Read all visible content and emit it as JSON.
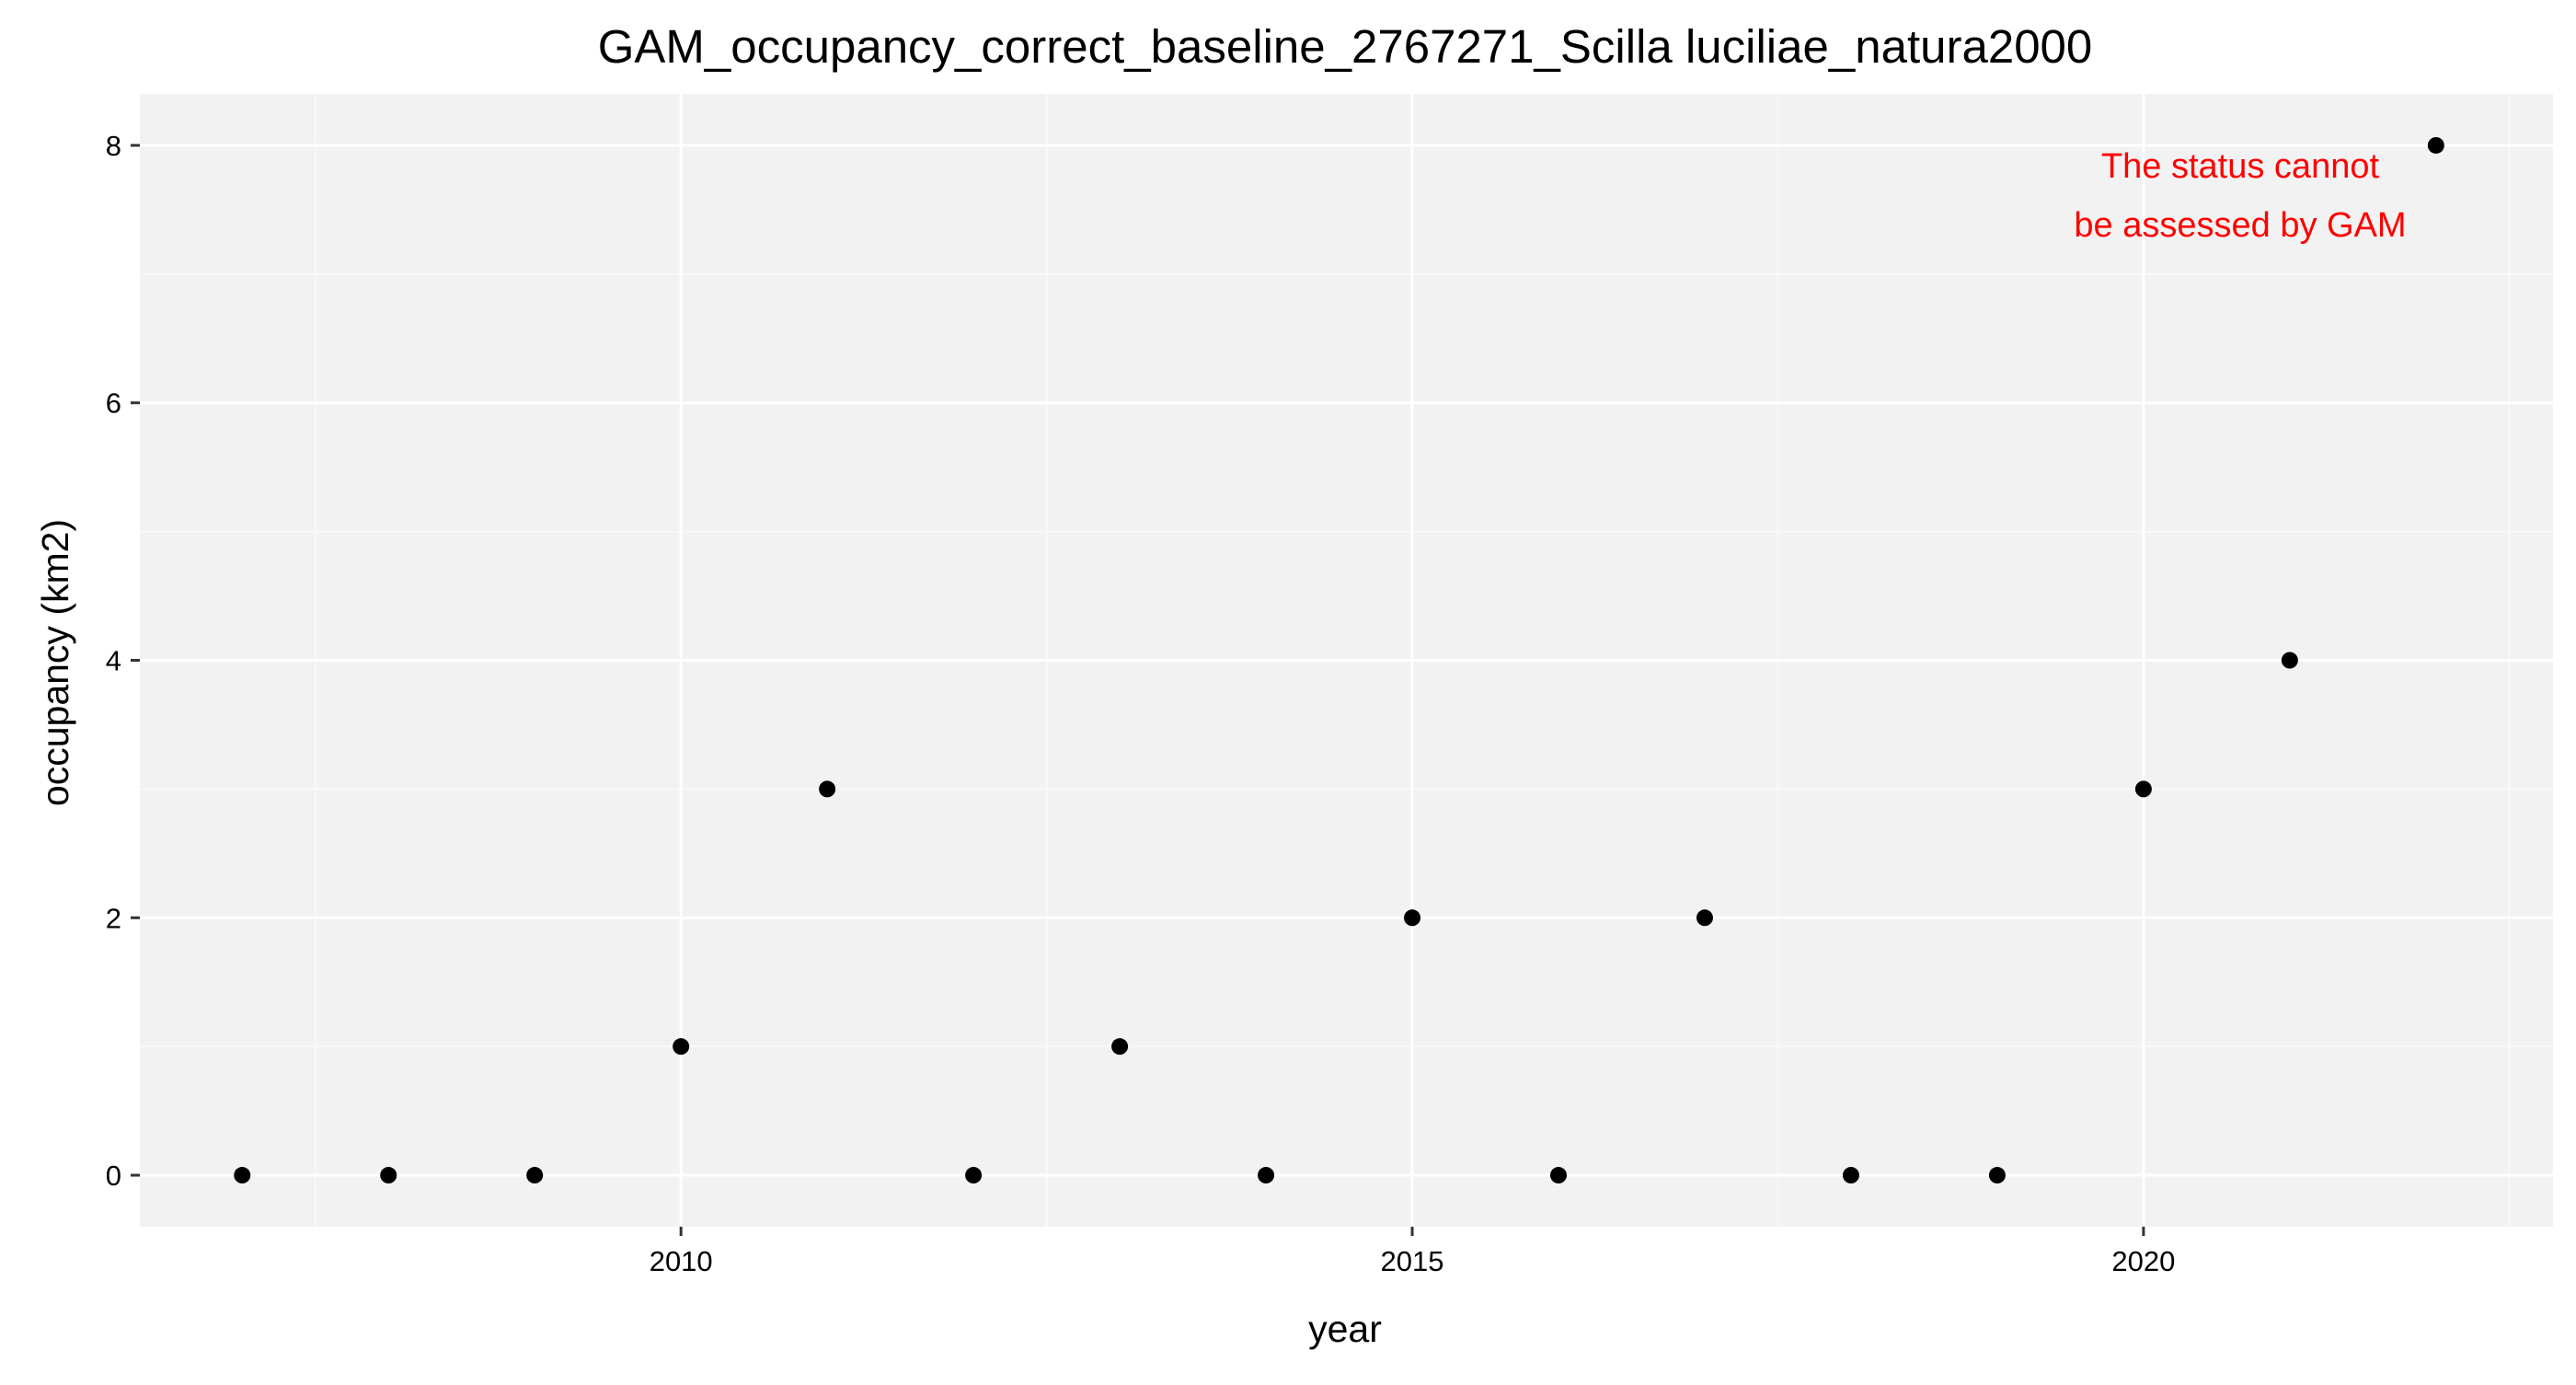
{
  "colors": {
    "panel_background": "#f2f2f2",
    "grid_major": "#ffffff",
    "grid_minor": "#fafafa",
    "point": "#000000",
    "annotation": "#ff0000",
    "tick": "#333333",
    "text": "#000000"
  },
  "chart_data": {
    "type": "scatter",
    "title": "GAM_occupancy_correct_baseline_2767271_Scilla luciliae_natura2000",
    "xlabel": "year",
    "ylabel": "occupancy (km2)",
    "xlim": [
      2006.3,
      2022.8
    ],
    "ylim": [
      -0.4,
      8.4
    ],
    "x_ticks": [
      2010,
      2015,
      2020
    ],
    "x_tick_labels": [
      "2010",
      "2015",
      "2020"
    ],
    "x_minor_ticks": [
      2007.5,
      2012.5,
      2017.5,
      2022.5
    ],
    "y_ticks": [
      0,
      2,
      4,
      6,
      8
    ],
    "y_tick_labels": [
      "0",
      "2",
      "4",
      "6",
      "8"
    ],
    "y_minor_ticks": [
      1,
      3,
      5,
      7
    ],
    "grid": true,
    "legend": "none",
    "points": [
      {
        "x": 2007,
        "y": 0
      },
      {
        "x": 2008,
        "y": 0
      },
      {
        "x": 2009,
        "y": 0
      },
      {
        "x": 2010,
        "y": 1
      },
      {
        "x": 2011,
        "y": 3
      },
      {
        "x": 2012,
        "y": 0
      },
      {
        "x": 2013,
        "y": 1
      },
      {
        "x": 2014,
        "y": 0
      },
      {
        "x": 2015,
        "y": 2
      },
      {
        "x": 2016,
        "y": 0
      },
      {
        "x": 2017,
        "y": 2
      },
      {
        "x": 2018,
        "y": 0
      },
      {
        "x": 2019,
        "y": 0
      },
      {
        "x": 2020,
        "y": 3
      },
      {
        "x": 2021,
        "y": 4
      },
      {
        "x": 2022,
        "y": 8
      }
    ],
    "annotation": {
      "lines": [
        "The status cannot",
        "be assessed by GAM"
      ],
      "placement": "top-right"
    }
  }
}
